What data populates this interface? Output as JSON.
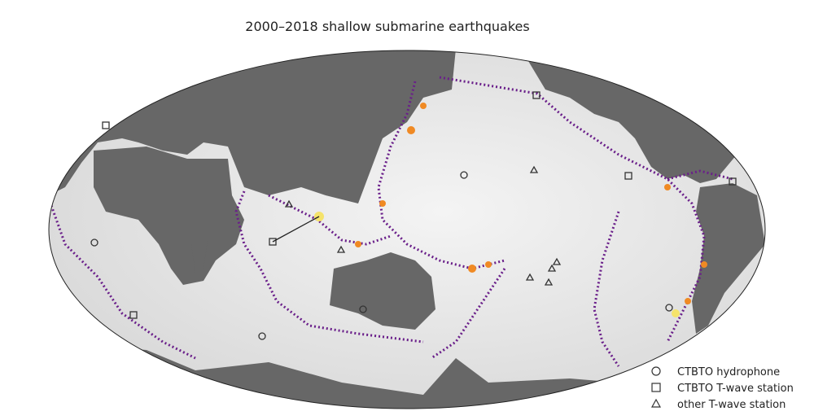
{
  "title": "2000–2018 shallow submarine earthquakes",
  "legend": [
    {
      "label": "CTBTO hydrophone",
      "marker": "circle"
    },
    {
      "label": "CTBTO T-wave station",
      "marker": "square"
    },
    {
      "label": "other T-wave station",
      "marker": "triangle"
    }
  ]
}
